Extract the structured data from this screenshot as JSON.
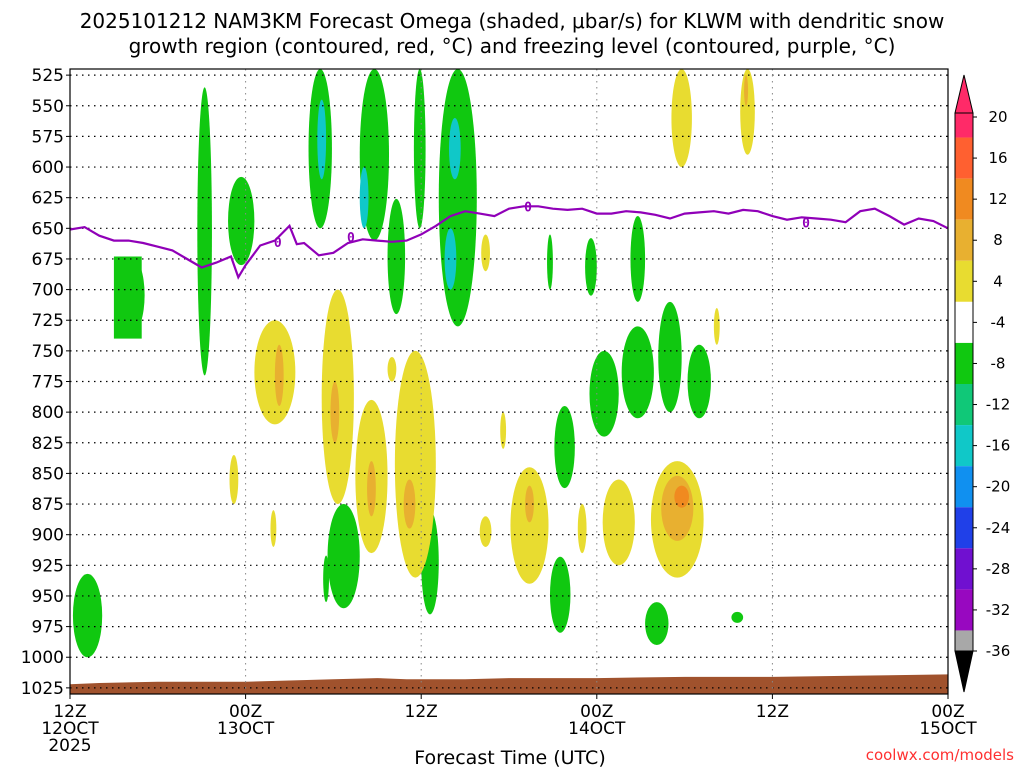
{
  "chart_data": {
    "type": "heatmap",
    "title_line1": "2025101212 NAM3KM Forecast Omega (shaded, μbar/s) for KLWM with dendritic snow",
    "title_line2": "growth region (contoured, red, °C) and freezing level (contoured, purple, °C)",
    "xlabel": "Forecast Time (UTC)",
    "credit": "coolwx.com/models",
    "x_range_hours": [
      0,
      60
    ],
    "y_levels": [
      525,
      550,
      575,
      600,
      625,
      650,
      675,
      700,
      725,
      750,
      775,
      800,
      825,
      850,
      875,
      900,
      925,
      950,
      975,
      1000,
      1025
    ],
    "x_ticks": [
      {
        "hour": 0,
        "line1": "12Z",
        "line2": "12OCT",
        "line3": "2025"
      },
      {
        "hour": 12,
        "line1": "00Z",
        "line2": "13OCT",
        "line3": ""
      },
      {
        "hour": 24,
        "line1": "12Z",
        "line2": "",
        "line3": ""
      },
      {
        "hour": 36,
        "line1": "00Z",
        "line2": "14OCT",
        "line3": ""
      },
      {
        "hour": 48,
        "line1": "12Z",
        "line2": "",
        "line3": ""
      },
      {
        "hour": 60,
        "line1": "00Z",
        "line2": "15OCT",
        "line3": ""
      }
    ],
    "colorbar": {
      "labels": [
        "20",
        "16",
        "12",
        "8",
        "4",
        "-4",
        "-8",
        "-12",
        "-16",
        "-20",
        "-24",
        "-28",
        "-32",
        "-36"
      ],
      "colors": [
        "#ff2a68",
        "#ff6030",
        "#f08a20",
        "#e8b030",
        "#e8dc30",
        "#ffffff",
        "#10c810",
        "#10c878",
        "#10c8c8",
        "#1090f0",
        "#2040e8",
        "#7010d0",
        "#9808c0",
        "#a8a8a8"
      ]
    },
    "freezing_level_label": "0",
    "freezing_level": [
      [
        0,
        651
      ],
      [
        1,
        649
      ],
      [
        2,
        656
      ],
      [
        3,
        660
      ],
      [
        4,
        660
      ],
      [
        5,
        662
      ],
      [
        6,
        665
      ],
      [
        7,
        668
      ],
      [
        8,
        675
      ],
      [
        9,
        682
      ],
      [
        10,
        678
      ],
      [
        11,
        673
      ],
      [
        11.5,
        690
      ],
      [
        12,
        680
      ],
      [
        13,
        664
      ],
      [
        14,
        660
      ],
      [
        15,
        648
      ],
      [
        15.5,
        663
      ],
      [
        16,
        662
      ],
      [
        17,
        672
      ],
      [
        18,
        670
      ],
      [
        19,
        662
      ],
      [
        20,
        659
      ],
      [
        21,
        660
      ],
      [
        22,
        661
      ],
      [
        23,
        660
      ],
      [
        24,
        655
      ],
      [
        25,
        648
      ],
      [
        26,
        640
      ],
      [
        27,
        636
      ],
      [
        28,
        638
      ],
      [
        29,
        640
      ],
      [
        30,
        634
      ],
      [
        31,
        632
      ],
      [
        32,
        632
      ],
      [
        33,
        634
      ],
      [
        34,
        635
      ],
      [
        35,
        634
      ],
      [
        36,
        638
      ],
      [
        37,
        638
      ],
      [
        38,
        636
      ],
      [
        39,
        637
      ],
      [
        40,
        639
      ],
      [
        41,
        642
      ],
      [
        42,
        638
      ],
      [
        43,
        637
      ],
      [
        44,
        636
      ],
      [
        45,
        638
      ],
      [
        46,
        635
      ],
      [
        47,
        636
      ],
      [
        48,
        640
      ],
      [
        49,
        643
      ],
      [
        50,
        641
      ],
      [
        51,
        642
      ],
      [
        52,
        643
      ],
      [
        53,
        645
      ],
      [
        54,
        636
      ],
      [
        55,
        634
      ],
      [
        56,
        640
      ],
      [
        57,
        647
      ],
      [
        58,
        642
      ],
      [
        59,
        644
      ],
      [
        60,
        650
      ]
    ],
    "freezing_level_labels_at": [
      [
        14.2,
        662
      ],
      [
        19.2,
        658
      ],
      [
        31.3,
        633
      ],
      [
        50.3,
        646
      ]
    ],
    "terrain_pressure": [
      [
        0,
        1022
      ],
      [
        2,
        1021
      ],
      [
        6,
        1020
      ],
      [
        12,
        1020
      ],
      [
        18,
        1018
      ],
      [
        21,
        1017
      ],
      [
        23,
        1018
      ],
      [
        27,
        1018
      ],
      [
        30,
        1017
      ],
      [
        36,
        1017
      ],
      [
        42,
        1016
      ],
      [
        48,
        1016
      ],
      [
        54,
        1015
      ],
      [
        60,
        1014
      ]
    ],
    "shaded_regions": [
      {
        "color": "#10c810",
        "hour": 1.2,
        "pmin": 932,
        "pmax": 1000,
        "half_width": 1.0
      },
      {
        "color": "#10c810",
        "hour": 4.2,
        "pmin": 673,
        "pmax": 736,
        "half_width": 0.9
      },
      {
        "color": "#10c810",
        "hour": 9.2,
        "pmin": 535,
        "pmax": 770,
        "half_width": 0.5
      },
      {
        "color": "#10c810",
        "hour": 11.7,
        "pmin": 608,
        "pmax": 680,
        "half_width": 0.9
      },
      {
        "color": "#10c810",
        "hour": 17.1,
        "pmin": 520,
        "pmax": 650,
        "half_width": 0.8
      },
      {
        "color": "#10c8c8",
        "hour": 17.2,
        "pmin": 545,
        "pmax": 610,
        "half_width": 0.3
      },
      {
        "color": "#10c810",
        "hour": 20.8,
        "pmin": 520,
        "pmax": 660,
        "half_width": 1.0
      },
      {
        "color": "#10c8c8",
        "hour": 20.1,
        "pmin": 600,
        "pmax": 650,
        "half_width": 0.3
      },
      {
        "color": "#10c810",
        "hour": 22.3,
        "pmin": 626,
        "pmax": 720,
        "half_width": 0.6
      },
      {
        "color": "#10c810",
        "hour": 23.9,
        "pmin": 520,
        "pmax": 650,
        "half_width": 0.4
      },
      {
        "color": "#10c810",
        "hour": 26.5,
        "pmin": 520,
        "pmax": 730,
        "half_width": 1.3
      },
      {
        "color": "#10c8c8",
        "hour": 26.3,
        "pmin": 560,
        "pmax": 610,
        "half_width": 0.4
      },
      {
        "color": "#10c8c8",
        "hour": 26.0,
        "pmin": 650,
        "pmax": 700,
        "half_width": 0.4
      },
      {
        "color": "#10c810",
        "hour": 32.8,
        "pmin": 655,
        "pmax": 700,
        "half_width": 0.2
      },
      {
        "color": "#10c810",
        "hour": 35.6,
        "pmin": 658,
        "pmax": 705,
        "half_width": 0.4
      },
      {
        "color": "#10c810",
        "hour": 38.8,
        "pmin": 640,
        "pmax": 710,
        "half_width": 0.5
      },
      {
        "color": "#10c810",
        "hour": 36.5,
        "pmin": 750,
        "pmax": 820,
        "half_width": 1.0
      },
      {
        "color": "#10c810",
        "hour": 38.8,
        "pmin": 730,
        "pmax": 805,
        "half_width": 1.1
      },
      {
        "color": "#10c810",
        "hour": 41.0,
        "pmin": 710,
        "pmax": 800,
        "half_width": 0.8
      },
      {
        "color": "#10c810",
        "hour": 43.0,
        "pmin": 745,
        "pmax": 805,
        "half_width": 0.8
      },
      {
        "color": "#10c810",
        "hour": 33.8,
        "pmin": 795,
        "pmax": 862,
        "half_width": 0.7
      },
      {
        "color": "#10c810",
        "hour": 18.7,
        "pmin": 875,
        "pmax": 960,
        "half_width": 1.1
      },
      {
        "color": "#10c810",
        "hour": 24.6,
        "pmin": 880,
        "pmax": 965,
        "half_width": 0.6
      },
      {
        "color": "#10c810",
        "hour": 17.5,
        "pmin": 917,
        "pmax": 955,
        "half_width": 0.2
      },
      {
        "color": "#10c810",
        "hour": 33.5,
        "pmin": 918,
        "pmax": 980,
        "half_width": 0.7
      },
      {
        "color": "#10c810",
        "hour": 40.1,
        "pmin": 955,
        "pmax": 990,
        "half_width": 0.8
      },
      {
        "color": "#10c810",
        "hour": 45.6,
        "pmin": 963,
        "pmax": 972,
        "half_width": 0.4
      },
      {
        "color": "#e8dc30",
        "hour": 14.0,
        "pmin": 725,
        "pmax": 810,
        "half_width": 1.4
      },
      {
        "color": "#e8b030",
        "hour": 14.3,
        "pmin": 745,
        "pmax": 795,
        "half_width": 0.3
      },
      {
        "color": "#e8dc30",
        "hour": 18.3,
        "pmin": 700,
        "pmax": 875,
        "half_width": 1.1
      },
      {
        "color": "#e8b030",
        "hour": 18.1,
        "pmin": 775,
        "pmax": 825,
        "half_width": 0.3
      },
      {
        "color": "#e8dc30",
        "hour": 20.6,
        "pmin": 790,
        "pmax": 915,
        "half_width": 1.1
      },
      {
        "color": "#e8b030",
        "hour": 20.6,
        "pmin": 840,
        "pmax": 885,
        "half_width": 0.3
      },
      {
        "color": "#e8dc30",
        "hour": 23.6,
        "pmin": 750,
        "pmax": 935,
        "half_width": 1.4
      },
      {
        "color": "#e8b030",
        "hour": 23.2,
        "pmin": 855,
        "pmax": 895,
        "half_width": 0.4
      },
      {
        "color": "#e8dc30",
        "hour": 31.4,
        "pmin": 845,
        "pmax": 940,
        "half_width": 1.3
      },
      {
        "color": "#e8b030",
        "hour": 31.4,
        "pmin": 860,
        "pmax": 890,
        "half_width": 0.3
      },
      {
        "color": "#e8dc30",
        "hour": 37.5,
        "pmin": 855,
        "pmax": 925,
        "half_width": 1.1
      },
      {
        "color": "#e8dc30",
        "hour": 41.5,
        "pmin": 840,
        "pmax": 935,
        "half_width": 1.8
      },
      {
        "color": "#e8b030",
        "hour": 41.5,
        "pmin": 852,
        "pmax": 905,
        "half_width": 1.1
      },
      {
        "color": "#f08a20",
        "hour": 41.8,
        "pmin": 860,
        "pmax": 878,
        "half_width": 0.5
      },
      {
        "color": "#e8dc30",
        "hour": 41.8,
        "pmin": 520,
        "pmax": 600,
        "half_width": 0.7
      },
      {
        "color": "#e8dc30",
        "hour": 46.3,
        "pmin": 520,
        "pmax": 590,
        "half_width": 0.5
      },
      {
        "color": "#e8b030",
        "hour": 46.2,
        "pmin": 525,
        "pmax": 550,
        "half_width": 0.1
      },
      {
        "color": "#e8dc30",
        "hour": 22.0,
        "pmin": 755,
        "pmax": 775,
        "half_width": 0.3
      },
      {
        "color": "#e8dc30",
        "hour": 28.4,
        "pmin": 655,
        "pmax": 685,
        "half_width": 0.3
      },
      {
        "color": "#e8dc30",
        "hour": 11.2,
        "pmin": 835,
        "pmax": 875,
        "half_width": 0.3
      },
      {
        "color": "#e8dc30",
        "hour": 28.4,
        "pmin": 885,
        "pmax": 910,
        "half_width": 0.4
      },
      {
        "color": "#e8dc30",
        "hour": 35.0,
        "pmin": 875,
        "pmax": 915,
        "half_width": 0.3
      },
      {
        "color": "#e8dc30",
        "hour": 29.6,
        "pmin": 800,
        "pmax": 830,
        "half_width": 0.2
      },
      {
        "color": "#e8dc30",
        "hour": 13.9,
        "pmin": 880,
        "pmax": 910,
        "half_width": 0.2
      },
      {
        "color": "#e8dc30",
        "hour": 44.2,
        "pmin": 715,
        "pmax": 745,
        "half_width": 0.2
      }
    ],
    "rect_regions": [
      {
        "color": "#10c810",
        "h0": 3.0,
        "h1": 4.9,
        "pmin": 673,
        "pmax": 740
      }
    ]
  }
}
